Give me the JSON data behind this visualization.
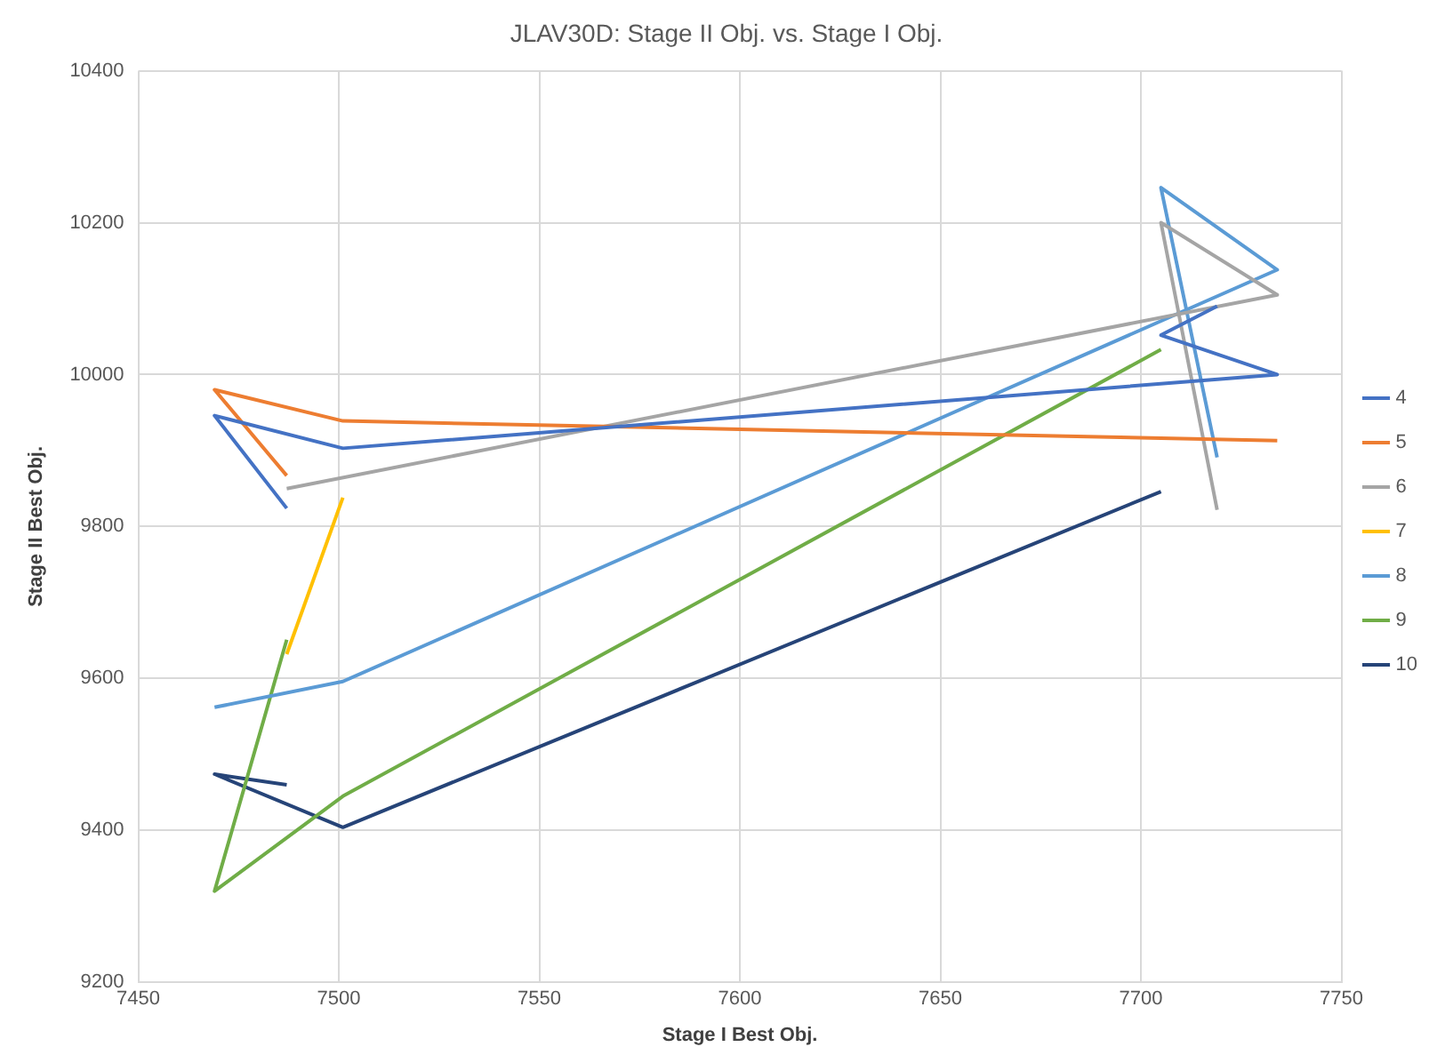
{
  "chart_data": {
    "type": "line",
    "title": "JLAV30D: Stage II Obj. vs. Stage I Obj.",
    "xlabel": "Stage I Best Obj.",
    "ylabel": "Stage II Best Obj.",
    "xlim": [
      7450,
      7750
    ],
    "xticks": [
      7450,
      7500,
      7550,
      7600,
      7650,
      7700,
      7750
    ],
    "ylim": [
      9200,
      10400
    ],
    "yticks": [
      9200,
      9400,
      9600,
      9800,
      10000,
      10200,
      10400
    ],
    "grid": true,
    "legend": "right",
    "marker": "none",
    "line_style": "solid",
    "series": [
      {
        "name": "4",
        "color": "#4472c4",
        "x": [
          7487,
          7469,
          7501,
          7734,
          7705,
          7719
        ],
        "values": [
          9824,
          9946,
          9903,
          10000,
          10052,
          10090
        ]
      },
      {
        "name": "5",
        "color": "#ed7d31",
        "x": [
          7487,
          7469,
          7501,
          7734
        ],
        "values": [
          9867,
          9980,
          9939,
          9913
        ]
      },
      {
        "name": "6",
        "color": "#a5a5a5",
        "x": [
          7487,
          7734,
          7705,
          7719
        ],
        "values": [
          9850,
          10105,
          10200,
          9822
        ]
      },
      {
        "name": "7",
        "color": "#ffc000",
        "x": [
          7487,
          7501
        ],
        "values": [
          9632,
          9838
        ]
      },
      {
        "name": "8",
        "color": "#5b9bd5",
        "x": [
          7469,
          7501,
          7734,
          7705,
          7719
        ],
        "values": [
          9562,
          9596,
          10138,
          10246,
          9891
        ]
      },
      {
        "name": "9",
        "color": "#70ad47",
        "x": [
          7487,
          7469,
          7501,
          7705
        ],
        "values": [
          9651,
          9320,
          9445,
          10033
        ]
      },
      {
        "name": "10",
        "color": "#264478",
        "x": [
          7487,
          7469,
          7501,
          7705
        ],
        "values": [
          9460,
          9474,
          9404,
          9846
        ]
      }
    ]
  }
}
